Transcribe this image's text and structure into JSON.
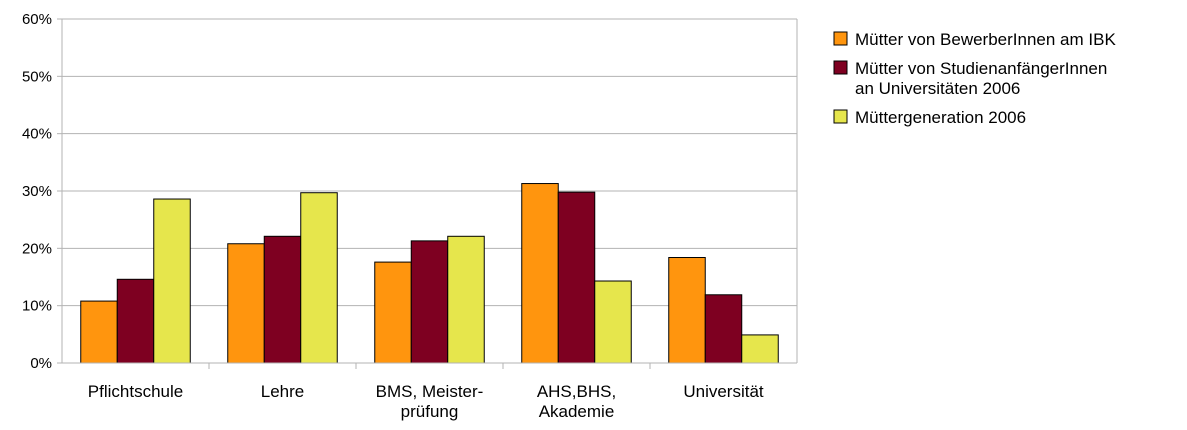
{
  "chart_data": {
    "type": "bar",
    "title": "",
    "xlabel": "",
    "ylabel": "",
    "ylim": [
      0,
      60
    ],
    "yticks": [
      "0%",
      "10%",
      "20%",
      "30%",
      "40%",
      "50%",
      "60%"
    ],
    "grid": true,
    "legend_position": "right",
    "categories": [
      [
        "Pflichtschule"
      ],
      [
        "Lehre"
      ],
      [
        "BMS, Meister-",
        "prüfung"
      ],
      [
        "AHS,BHS,",
        "Akademie"
      ],
      [
        "Universität"
      ]
    ],
    "series": [
      {
        "name": [
          "Mütter von BewerberInnen am IBK"
        ],
        "color": "#FF950E",
        "values": [
          10.8,
          20.8,
          17.6,
          31.3,
          18.4
        ]
      },
      {
        "name": [
          "Mütter von StudienanfängerInnen",
          "an Universitäten 2006"
        ],
        "color": "#7E0021",
        "values": [
          14.6,
          22.1,
          21.3,
          29.8,
          11.9
        ]
      },
      {
        "name": [
          "Müttergeneration 2006"
        ],
        "color": "#E6E64C",
        "values": [
          28.6,
          29.7,
          22.1,
          14.3,
          4.9
        ]
      }
    ]
  }
}
